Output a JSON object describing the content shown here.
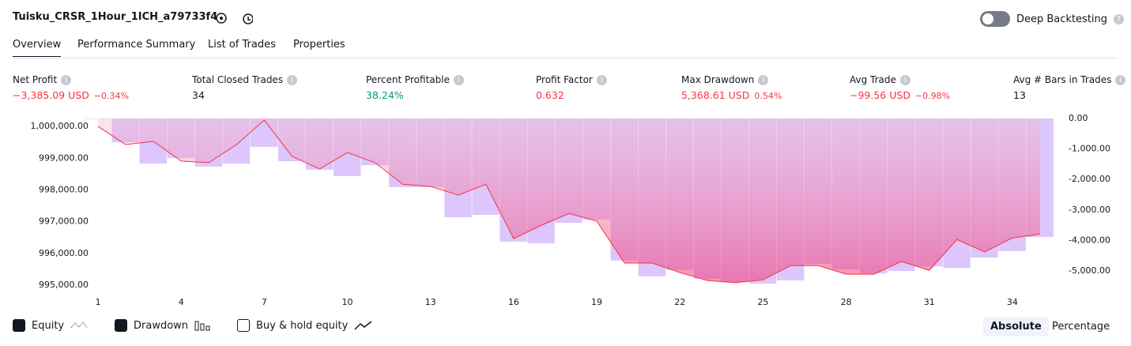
{
  "header": {
    "title": "Tuisku_CRSR_1Hour_1ICH_a79733f4",
    "toggle_label": "Deep Backtesting"
  },
  "tabs": [
    "Overview",
    "Performance Summary",
    "List of Trades",
    "Properties"
  ],
  "metrics": [
    {
      "label": "Net Profit",
      "value": "−3,385.09 USD",
      "percent": "−0.34%"
    },
    {
      "label": "Total Closed Trades",
      "value": "34"
    },
    {
      "label": "Percent Profitable",
      "value": "38.24%"
    },
    {
      "label": "Profit Factor",
      "value": "0.632"
    },
    {
      "label": "Max Drawdown",
      "value": "5,368.61 USD",
      "percent": "0.54%"
    },
    {
      "label": "Avg Trade",
      "value": "−99.56 USD",
      "percent": "−0.98%"
    },
    {
      "label": "Avg # Bars in Trades",
      "value": "13"
    }
  ],
  "chart_data": {
    "type": "line",
    "x": [
      1,
      2,
      3,
      4,
      5,
      6,
      7,
      8,
      9,
      10,
      11,
      12,
      13,
      14,
      15,
      16,
      17,
      18,
      19,
      20,
      21,
      22,
      23,
      24,
      25,
      26,
      27,
      28,
      29,
      30,
      31,
      32,
      33,
      34,
      35
    ],
    "xlim": [
      0.5,
      35.5
    ],
    "xticks": [
      1,
      4,
      7,
      10,
      13,
      16,
      19,
      22,
      25,
      28,
      31,
      34
    ],
    "ylim": [
      994780,
      1000250
    ],
    "yticks": [
      {
        "value": 1000000,
        "label": "1,000,000.00"
      },
      {
        "value": 999000,
        "label": "999,000.00"
      },
      {
        "value": 998000,
        "label": "998,000.00"
      },
      {
        "value": 997000,
        "label": "997,000.00"
      },
      {
        "value": 996000,
        "label": "996,000.00"
      },
      {
        "value": 995000,
        "label": "995,000.00"
      }
    ],
    "y2lim": [
      -5700,
      0
    ],
    "y2ticks": [
      {
        "value": 0,
        "label": "0.00"
      },
      {
        "value": -1000,
        "label": "-1,000.00"
      },
      {
        "value": -2000,
        "label": "-2,000.00"
      },
      {
        "value": -3000,
        "label": "-3,000.00"
      },
      {
        "value": -4000,
        "label": "-4,000.00"
      },
      {
        "value": -5000,
        "label": "-5,000.00"
      }
    ],
    "series": [
      {
        "name": "Equity",
        "color": "#f23645",
        "values": [
          1000000,
          999430,
          999530,
          998910,
          998860,
          999430,
          1000200,
          999060,
          998660,
          999180,
          998860,
          998180,
          998110,
          997840,
          998180,
          996470,
          996890,
          997260,
          997020,
          995700,
          995700,
          995400,
          995150,
          995080,
          995170,
          995620,
          995620,
          995350,
          995350,
          995750,
          995470,
          996440,
          996050,
          996490,
          996615
        ]
      },
      {
        "name": "Drawdown",
        "color": "#d7bcfb",
        "axis": "y2",
        "values": [
          0,
          -780,
          -1480,
          -1300,
          -1580,
          -1480,
          -930,
          -1400,
          -1680,
          -1890,
          -1530,
          -2250,
          -2250,
          -3240,
          -3160,
          -4040,
          -4090,
          -3420,
          -3320,
          -4660,
          -5180,
          -4970,
          -5260,
          -5360,
          -5420,
          -5310,
          -4770,
          -4950,
          -5080,
          -5000,
          -4850,
          -4900,
          -4560,
          -4350,
          -3890
        ]
      }
    ]
  },
  "controls": {
    "extra_checkbox": "Buy & hold equity",
    "buttons": [
      "Absolute",
      "Percentage"
    ]
  }
}
